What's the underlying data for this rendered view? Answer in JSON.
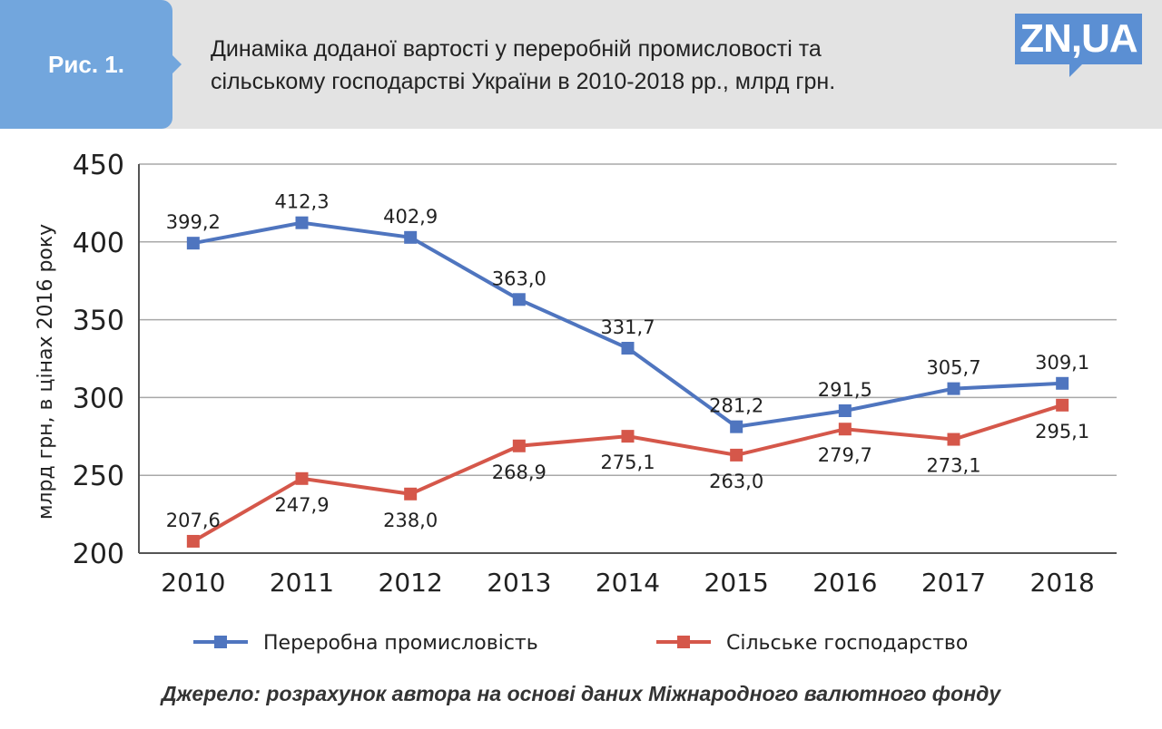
{
  "header": {
    "fig_label": "Рис. 1.",
    "title_line1": "Динаміка доданої вартості у переробній промисловості та",
    "title_line2": "сільському господарстві України в 2010-2018 рр., млрд грн.",
    "logo": "ZN,UA"
  },
  "chart_data": {
    "type": "line",
    "title": "Динаміка доданої вартості у переробній промисловості та сільському господарстві України в 2010-2018 рр., млрд грн.",
    "ylabel": "млрд грн, в цінах 2016 року",
    "xlabel": "",
    "categories": [
      "2010",
      "2011",
      "2012",
      "2013",
      "2014",
      "2015",
      "2016",
      "2017",
      "2018"
    ],
    "ylim": [
      200,
      450
    ],
    "yticks": [
      "200",
      "250",
      "300",
      "350",
      "400",
      "450"
    ],
    "grid": true,
    "legend": "bottom",
    "series": [
      {
        "name": "Переробна промисловість",
        "color": "#4f75bf",
        "values": [
          399.2,
          412.3,
          402.9,
          363.0,
          331.7,
          281.2,
          291.5,
          305.7,
          309.1
        ],
        "labels": [
          "399,2",
          "412,3",
          "402,9",
          "363,0",
          "331,7",
          "281,2",
          "291,5",
          "305,7",
          "309,1"
        ]
      },
      {
        "name": "Сільське господарство",
        "color": "#d5574a",
        "values": [
          207.6,
          247.9,
          238.0,
          268.9,
          275.1,
          263.0,
          279.7,
          273.1,
          295.1
        ],
        "labels": [
          "207,6",
          "247,9",
          "238,0",
          "268,9",
          "275,1",
          "263,0",
          "279,7",
          "273,1",
          "295,1"
        ]
      }
    ]
  },
  "source": "Джерело: розрахунок автора на основі даних Міжнародного валютного фонду"
}
